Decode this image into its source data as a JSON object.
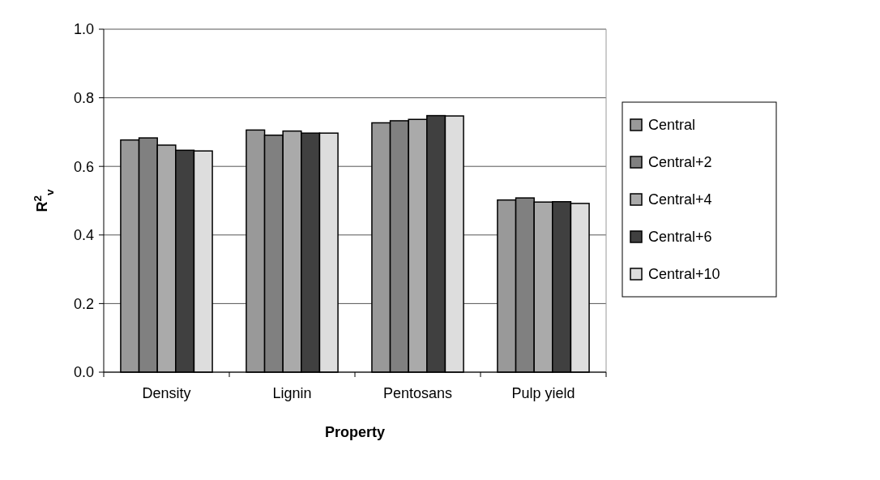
{
  "chart_data": {
    "type": "bar",
    "xlabel": "Property",
    "ylabel": "R$^{2}$$_{v}$",
    "categories": [
      "Density",
      "Lignin",
      "Pentosans",
      "Pulp yield"
    ],
    "series": [
      {
        "name": "Central",
        "color": "#999999",
        "values": [
          0.677,
          0.706,
          0.727,
          0.502
        ]
      },
      {
        "name": "Central+2",
        "color": "#808080",
        "values": [
          0.683,
          0.691,
          0.733,
          0.508
        ]
      },
      {
        "name": "Central+4",
        "color": "#aaaaaa",
        "values": [
          0.662,
          0.703,
          0.737,
          0.496
        ]
      },
      {
        "name": "Central+6",
        "color": "#404040",
        "values": [
          0.647,
          0.697,
          0.748,
          0.497
        ]
      },
      {
        "name": "Central+10",
        "color": "#dddddd",
        "values": [
          0.645,
          0.697,
          0.747,
          0.492
        ]
      }
    ],
    "ylim": [
      0,
      1
    ],
    "yticks": [
      {
        "value": 0,
        "label": "0.0"
      },
      {
        "value": 0.2,
        "label": "0.2"
      },
      {
        "value": 0.4,
        "label": "0.4"
      },
      {
        "value": 0.6,
        "label": "0.6"
      },
      {
        "value": 0.8,
        "label": "0.8"
      },
      {
        "value": 1,
        "label": "1.0"
      }
    ],
    "grid": "y",
    "legend": "right"
  }
}
